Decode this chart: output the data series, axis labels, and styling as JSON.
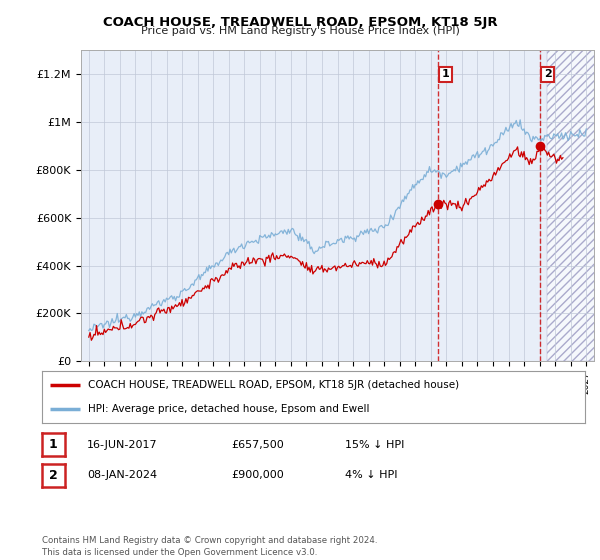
{
  "title": "COACH HOUSE, TREADWELL ROAD, EPSOM, KT18 5JR",
  "subtitle": "Price paid vs. HM Land Registry's House Price Index (HPI)",
  "ylabel_ticks": [
    "£0",
    "£200K",
    "£400K",
    "£600K",
    "£800K",
    "£1M",
    "£1.2M"
  ],
  "ytick_values": [
    0,
    200000,
    400000,
    600000,
    800000,
    1000000,
    1200000
  ],
  "ylim": [
    0,
    1300000
  ],
  "xlim_start": 1994.5,
  "xlim_end": 2027.5,
  "purchase1_date": 2017.46,
  "purchase1_price": 657500,
  "purchase2_date": 2024.03,
  "purchase2_price": 900000,
  "red_color": "#cc0000",
  "blue_color": "#7aaed6",
  "legend_entry1": "COACH HOUSE, TREADWELL ROAD, EPSOM, KT18 5JR (detached house)",
  "legend_entry2": "HPI: Average price, detached house, Epsom and Ewell",
  "table_row1": [
    "1",
    "16-JUN-2017",
    "£657,500",
    "15% ↓ HPI"
  ],
  "table_row2": [
    "2",
    "08-JAN-2024",
    "£900,000",
    "4% ↓ HPI"
  ],
  "footer": "Contains HM Land Registry data © Crown copyright and database right 2024.\nThis data is licensed under the Open Government Licence v3.0.",
  "bg_color": "#ffffff",
  "plot_bg_color": "#e8eef8",
  "grid_color": "#c0c8d8",
  "hatch_start": 2024.5
}
